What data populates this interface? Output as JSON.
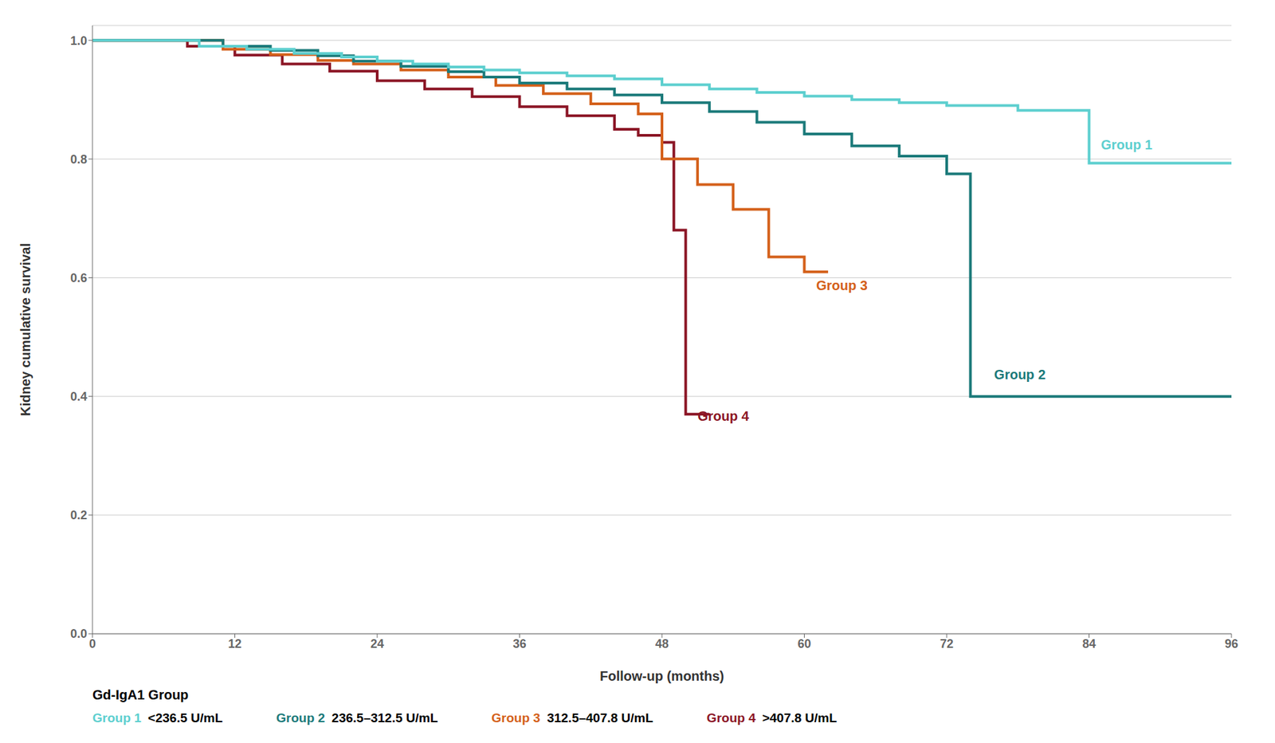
{
  "chart_data": {
    "type": "step",
    "x_label": "Follow-up (months)",
    "y_label": "Kidney cumulative survival",
    "xlim": [
      0,
      96
    ],
    "xticks": [
      0,
      12,
      24,
      36,
      48,
      60,
      72,
      84,
      96
    ],
    "ylim": [
      0,
      1.025
    ],
    "yticks": [
      {
        "value": 0,
        "label": "0.0"
      },
      0.2,
      0.4,
      0.6,
      0.8,
      {
        "value": 1,
        "label": "1.0"
      }
    ],
    "grid": true,
    "legend": "bottom",
    "legend_title": "Gd-IgA1 Group",
    "series": [
      {
        "name": "Group 1",
        "description": "<236.5 U/mL",
        "color": "#5DCFCF",
        "x": [
          0,
          4,
          9,
          13,
          17,
          21,
          24,
          27,
          30,
          33,
          36,
          40,
          44,
          48,
          52,
          56,
          60,
          64,
          68,
          72,
          78,
          84,
          96
        ],
        "values": [
          1.0,
          1.0,
          0.99,
          0.985,
          0.978,
          0.972,
          0.965,
          0.96,
          0.955,
          0.95,
          0.945,
          0.94,
          0.935,
          0.925,
          0.918,
          0.912,
          0.906,
          0.9,
          0.895,
          0.89,
          0.882,
          0.793,
          0.793
        ]
      },
      {
        "name": "Group 2",
        "description": "236.5–312.5 U/mL",
        "color": "#1B7A7A",
        "x": [
          0,
          7,
          11,
          15,
          19,
          22,
          26,
          30,
          33,
          36,
          40,
          44,
          48,
          52,
          56,
          60,
          64,
          68,
          72,
          74,
          96
        ],
        "values": [
          1.0,
          1.0,
          0.99,
          0.983,
          0.974,
          0.965,
          0.956,
          0.947,
          0.938,
          0.928,
          0.918,
          0.908,
          0.895,
          0.88,
          0.862,
          0.842,
          0.822,
          0.805,
          0.775,
          0.4,
          0.4
        ]
      },
      {
        "name": "Group 3",
        "description": "312.5–407.8 U/mL",
        "color": "#D4601A",
        "x": [
          0,
          6,
          11,
          15,
          19,
          22,
          26,
          30,
          34,
          38,
          42,
          46,
          48,
          51,
          54,
          57,
          60,
          62
        ],
        "values": [
          1.0,
          1.0,
          0.985,
          0.976,
          0.966,
          0.96,
          0.95,
          0.938,
          0.924,
          0.91,
          0.893,
          0.876,
          0.8,
          0.757,
          0.715,
          0.635,
          0.61,
          0.61
        ]
      },
      {
        "name": "Group 4",
        "description": ">407.8 U/mL",
        "color": "#8B1525",
        "x": [
          0,
          4,
          8,
          12,
          16,
          20,
          24,
          28,
          32,
          36,
          40,
          44,
          46,
          48,
          49,
          50,
          52
        ],
        "values": [
          1.0,
          1.0,
          0.99,
          0.975,
          0.96,
          0.948,
          0.932,
          0.918,
          0.905,
          0.888,
          0.873,
          0.85,
          0.84,
          0.828,
          0.68,
          0.37,
          0.37
        ]
      }
    ],
    "annotations": [
      {
        "text": "Group 1",
        "x": 85,
        "y": 0.812,
        "color": "#5DCFCF"
      },
      {
        "text": "Group 2",
        "x": 76,
        "y": 0.425,
        "color": "#1B7A7A"
      },
      {
        "text": "Group 3",
        "x": 61,
        "y": 0.575,
        "color": "#D4601A"
      },
      {
        "text": "Group 4",
        "x": 51,
        "y": 0.355,
        "color": "#8B1525"
      }
    ]
  }
}
